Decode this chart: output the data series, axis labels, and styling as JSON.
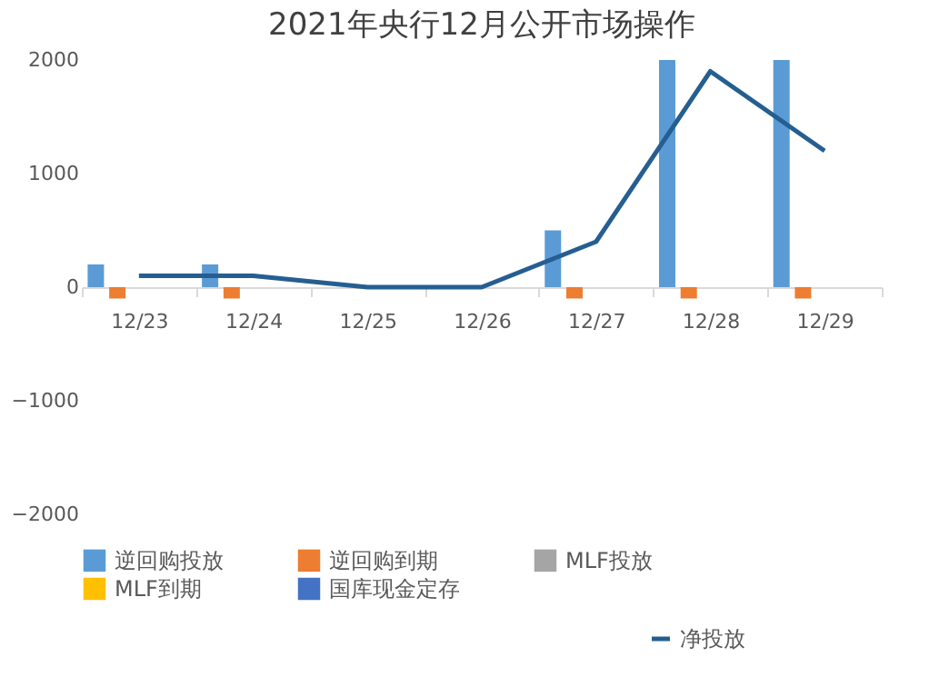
{
  "chart_data": {
    "type": "bar",
    "title": "2021年央行12月公开市场操作",
    "categories": [
      "12/23",
      "12/24",
      "12/25",
      "12/26",
      "12/27",
      "12/28",
      "12/29"
    ],
    "series": [
      {
        "name": "逆回购投放",
        "color": "#5b9bd5",
        "values": [
          200,
          200,
          0,
          0,
          500,
          2000,
          2000
        ]
      },
      {
        "name": "逆回购到期",
        "color": "#ed7d31",
        "values": [
          -100,
          -100,
          0,
          0,
          -100,
          -100,
          -100
        ]
      },
      {
        "name": "MLF投放",
        "color": "#a5a5a5",
        "values": [
          0,
          0,
          0,
          0,
          0,
          0,
          0
        ]
      },
      {
        "name": "MLF到期",
        "color": "#ffc000",
        "values": [
          0,
          0,
          0,
          0,
          0,
          0,
          0
        ]
      },
      {
        "name": "国库现金定存",
        "color": "#4472c4",
        "values": [
          0,
          0,
          0,
          0,
          0,
          0,
          0
        ]
      },
      {
        "name": "净投放",
        "type": "line",
        "color": "#255e91",
        "values": [
          100,
          100,
          0,
          0,
          400,
          1900,
          1200
        ]
      }
    ],
    "ylim": [
      -2000,
      2000
    ],
    "yticks": [
      -2000,
      -1000,
      0,
      1000,
      2000
    ],
    "grid": false,
    "legend": "bottom"
  }
}
